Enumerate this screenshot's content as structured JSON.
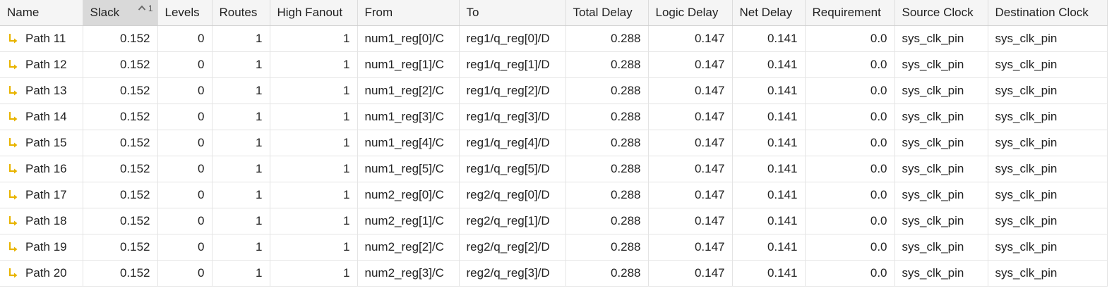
{
  "table": {
    "columns": [
      {
        "key": "name",
        "label": "Name",
        "align": "left"
      },
      {
        "key": "slack",
        "label": "Slack",
        "align": "right",
        "sorted": true,
        "sort_direction": "ascending",
        "sort_order": "1"
      },
      {
        "key": "levels",
        "label": "Levels",
        "align": "right"
      },
      {
        "key": "routes",
        "label": "Routes",
        "align": "right"
      },
      {
        "key": "high_fanout",
        "label": "High Fanout",
        "align": "right"
      },
      {
        "key": "from",
        "label": "From",
        "align": "left"
      },
      {
        "key": "to",
        "label": "To",
        "align": "left"
      },
      {
        "key": "total_delay",
        "label": "Total Delay",
        "align": "right"
      },
      {
        "key": "logic_delay",
        "label": "Logic Delay",
        "align": "right"
      },
      {
        "key": "net_delay",
        "label": "Net Delay",
        "align": "right"
      },
      {
        "key": "requirement",
        "label": "Requirement",
        "align": "right"
      },
      {
        "key": "source_clock",
        "label": "Source Clock",
        "align": "left"
      },
      {
        "key": "destination_clock",
        "label": "Destination Clock",
        "align": "left"
      }
    ],
    "row_icon": "path-arrow-icon",
    "icon_color": "#e8b400",
    "rows": [
      {
        "name": "Path 11",
        "slack": "0.152",
        "levels": "0",
        "routes": "1",
        "high_fanout": "1",
        "from": "num1_reg[0]/C",
        "to": "reg1/q_reg[0]/D",
        "total_delay": "0.288",
        "logic_delay": "0.147",
        "net_delay": "0.141",
        "requirement": "0.0",
        "source_clock": "sys_clk_pin",
        "destination_clock": "sys_clk_pin"
      },
      {
        "name": "Path 12",
        "slack": "0.152",
        "levels": "0",
        "routes": "1",
        "high_fanout": "1",
        "from": "num1_reg[1]/C",
        "to": "reg1/q_reg[1]/D",
        "total_delay": "0.288",
        "logic_delay": "0.147",
        "net_delay": "0.141",
        "requirement": "0.0",
        "source_clock": "sys_clk_pin",
        "destination_clock": "sys_clk_pin"
      },
      {
        "name": "Path 13",
        "slack": "0.152",
        "levels": "0",
        "routes": "1",
        "high_fanout": "1",
        "from": "num1_reg[2]/C",
        "to": "reg1/q_reg[2]/D",
        "total_delay": "0.288",
        "logic_delay": "0.147",
        "net_delay": "0.141",
        "requirement": "0.0",
        "source_clock": "sys_clk_pin",
        "destination_clock": "sys_clk_pin"
      },
      {
        "name": "Path 14",
        "slack": "0.152",
        "levels": "0",
        "routes": "1",
        "high_fanout": "1",
        "from": "num1_reg[3]/C",
        "to": "reg1/q_reg[3]/D",
        "total_delay": "0.288",
        "logic_delay": "0.147",
        "net_delay": "0.141",
        "requirement": "0.0",
        "source_clock": "sys_clk_pin",
        "destination_clock": "sys_clk_pin"
      },
      {
        "name": "Path 15",
        "slack": "0.152",
        "levels": "0",
        "routes": "1",
        "high_fanout": "1",
        "from": "num1_reg[4]/C",
        "to": "reg1/q_reg[4]/D",
        "total_delay": "0.288",
        "logic_delay": "0.147",
        "net_delay": "0.141",
        "requirement": "0.0",
        "source_clock": "sys_clk_pin",
        "destination_clock": "sys_clk_pin"
      },
      {
        "name": "Path 16",
        "slack": "0.152",
        "levels": "0",
        "routes": "1",
        "high_fanout": "1",
        "from": "num1_reg[5]/C",
        "to": "reg1/q_reg[5]/D",
        "total_delay": "0.288",
        "logic_delay": "0.147",
        "net_delay": "0.141",
        "requirement": "0.0",
        "source_clock": "sys_clk_pin",
        "destination_clock": "sys_clk_pin"
      },
      {
        "name": "Path 17",
        "slack": "0.152",
        "levels": "0",
        "routes": "1",
        "high_fanout": "1",
        "from": "num2_reg[0]/C",
        "to": "reg2/q_reg[0]/D",
        "total_delay": "0.288",
        "logic_delay": "0.147",
        "net_delay": "0.141",
        "requirement": "0.0",
        "source_clock": "sys_clk_pin",
        "destination_clock": "sys_clk_pin"
      },
      {
        "name": "Path 18",
        "slack": "0.152",
        "levels": "0",
        "routes": "1",
        "high_fanout": "1",
        "from": "num2_reg[1]/C",
        "to": "reg2/q_reg[1]/D",
        "total_delay": "0.288",
        "logic_delay": "0.147",
        "net_delay": "0.141",
        "requirement": "0.0",
        "source_clock": "sys_clk_pin",
        "destination_clock": "sys_clk_pin"
      },
      {
        "name": "Path 19",
        "slack": "0.152",
        "levels": "0",
        "routes": "1",
        "high_fanout": "1",
        "from": "num2_reg[2]/C",
        "to": "reg2/q_reg[2]/D",
        "total_delay": "0.288",
        "logic_delay": "0.147",
        "net_delay": "0.141",
        "requirement": "0.0",
        "source_clock": "sys_clk_pin",
        "destination_clock": "sys_clk_pin"
      },
      {
        "name": "Path 20",
        "slack": "0.152",
        "levels": "0",
        "routes": "1",
        "high_fanout": "1",
        "from": "num2_reg[3]/C",
        "to": "reg2/q_reg[3]/D",
        "total_delay": "0.288",
        "logic_delay": "0.147",
        "net_delay": "0.141",
        "requirement": "0.0",
        "source_clock": "sys_clk_pin",
        "destination_clock": "sys_clk_pin"
      }
    ]
  }
}
